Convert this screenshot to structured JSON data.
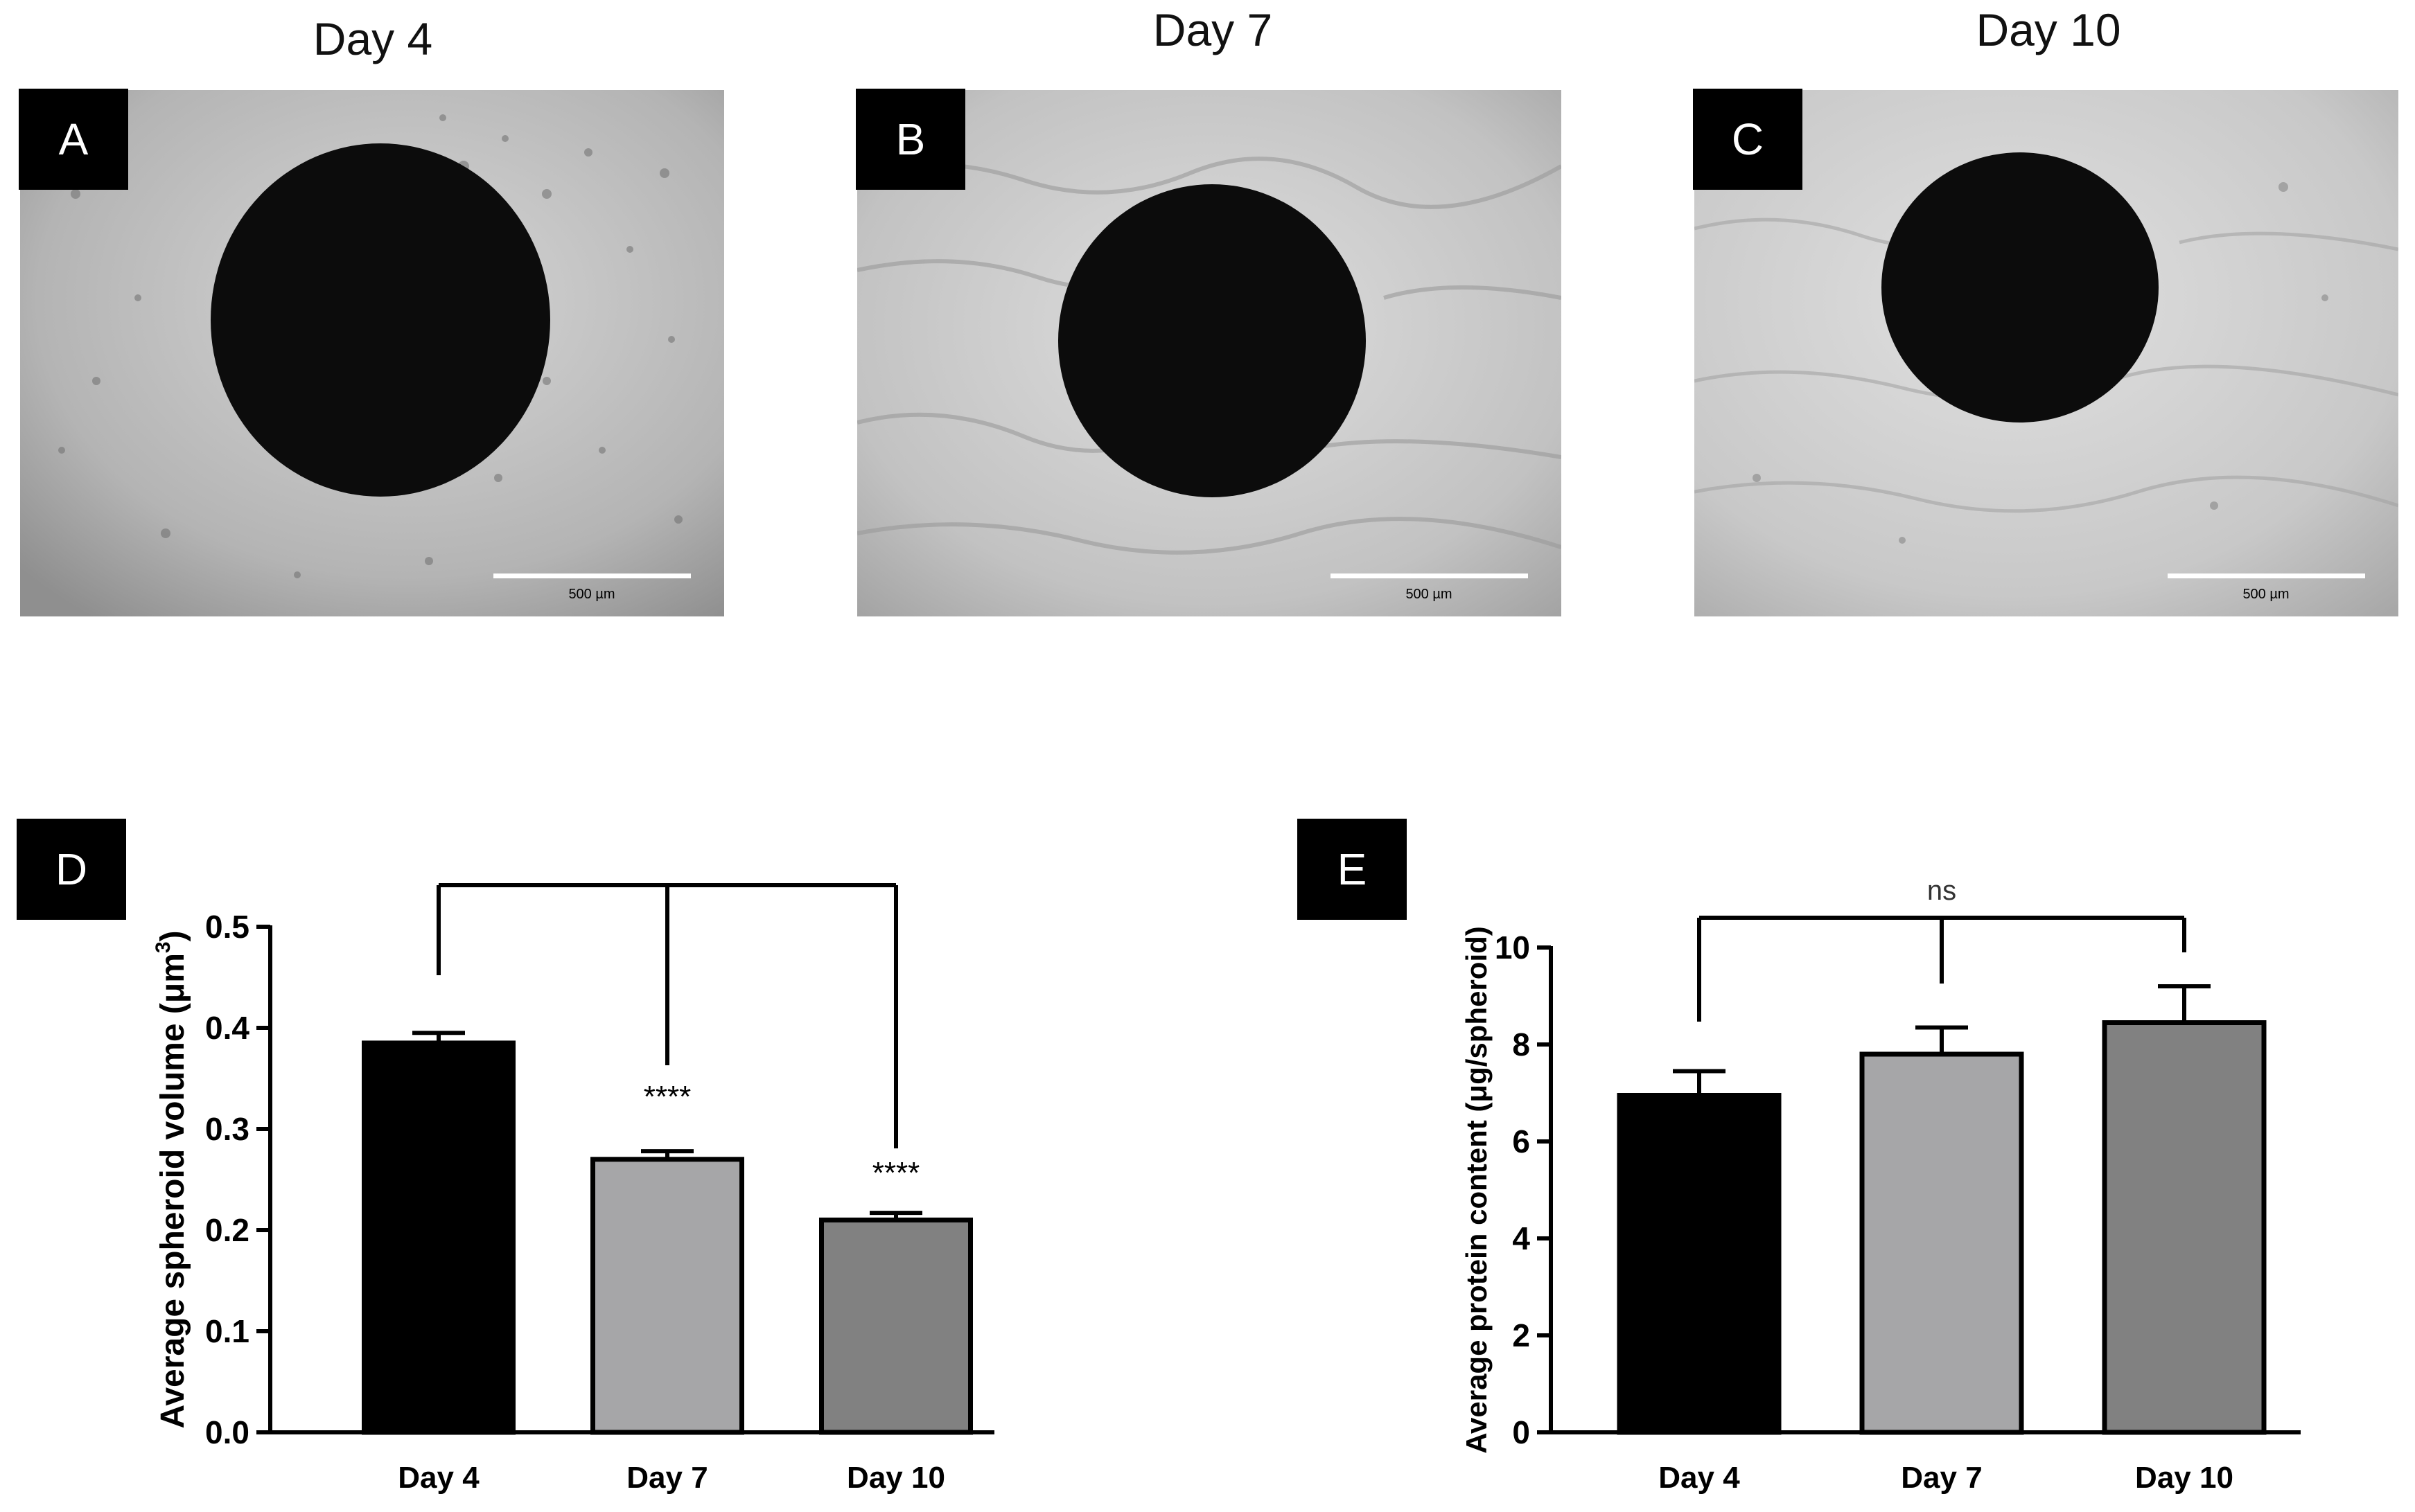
{
  "panels": {
    "A": {
      "label": "A",
      "day": "Day 4",
      "scale_bar": "500 µm"
    },
    "B": {
      "label": "B",
      "day": "Day 7",
      "scale_bar": "500 µm"
    },
    "C": {
      "label": "C",
      "day": "Day 10",
      "scale_bar": "500 µm"
    },
    "D": {
      "label": "D"
    },
    "E": {
      "label": "E"
    }
  },
  "colors": {
    "day4": "#000000",
    "day7": "#a6a6a8",
    "day10": "#818181"
  },
  "chart_data": [
    {
      "type": "bar",
      "panel": "D",
      "categories": [
        "Day 4",
        "Day 7",
        "Day 10"
      ],
      "values": [
        0.385,
        0.27,
        0.21
      ],
      "errors": [
        0.01,
        0.008,
        0.007
      ],
      "ylabel_prefix": "Average spheroid volume (μm",
      "ylabel_sup": "3",
      "ylabel_suffix": ")",
      "ylim": [
        0,
        0.5
      ],
      "yticks": [
        "0.0",
        "0.1",
        "0.2",
        "0.3",
        "0.4",
        "0.5"
      ],
      "significance": [
        "",
        "****",
        "****"
      ]
    },
    {
      "type": "bar",
      "panel": "E",
      "categories": [
        "Day 4",
        "Day 7",
        "Day 10"
      ],
      "values": [
        6.95,
        7.8,
        8.45
      ],
      "errors": [
        0.5,
        0.55,
        0.75
      ],
      "ylabel": "Average protein content (μg/spheroid)",
      "ylim": [
        0,
        10
      ],
      "yticks": [
        "0",
        "2",
        "4",
        "6",
        "8",
        "10"
      ],
      "bracket_label": "ns"
    }
  ]
}
